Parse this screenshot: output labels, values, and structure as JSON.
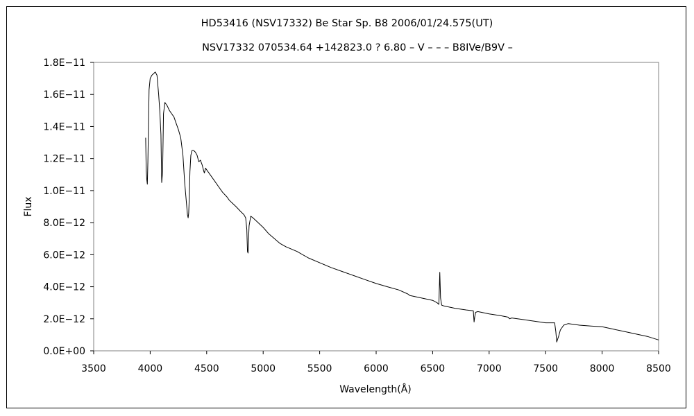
{
  "chart_data": {
    "type": "line",
    "title": "HD53416 (NSV17332)    Be Star    Sp. B8    2006/01/24.575(UT)",
    "subtitle": "NSV17332 070534.64 +142823.0 ? 6.80 – V – – – B8IVe/B9V –",
    "xlabel": "Wavelength(Å)",
    "ylabel": "Flux",
    "xlim": [
      3500,
      8500
    ],
    "ylim": [
      0,
      1.8e-11
    ],
    "grid": false,
    "x_ticks": [
      3500,
      4000,
      4500,
      5000,
      5500,
      6000,
      6500,
      7000,
      7500,
      8000,
      8500
    ],
    "x_tick_labels": [
      "3500",
      "4000",
      "4500",
      "5000",
      "5500",
      "6000",
      "6500",
      "7000",
      "7500",
      "8000",
      "8500"
    ],
    "y_ticks": [
      0,
      2e-12,
      4e-12,
      6e-12,
      8e-12,
      1e-11,
      1.2e-11,
      1.4e-11,
      1.6e-11,
      1.8e-11
    ],
    "y_tick_labels": [
      "0.0E+00",
      "2.0E−12",
      "4.0E−12",
      "6.0E−12",
      "8.0E−12",
      "1.0E−11",
      "1.2E−11",
      "1.4E−11",
      "1.6E−11",
      "1.8E−11"
    ],
    "series": [
      {
        "color": "#000000",
        "x": [
          3960,
          3965,
          3970,
          3975,
          3980,
          3990,
          4000,
          4015,
          4030,
          4045,
          4060,
          4075,
          4085,
          4095,
          4102,
          4110,
          4118,
          4130,
          4150,
          4170,
          4190,
          4210,
          4230,
          4250,
          4270,
          4290,
          4305,
          4320,
          4330,
          4336,
          4341,
          4346,
          4352,
          4360,
          4370,
          4385,
          4400,
          4415,
          4430,
          4445,
          4460,
          4475,
          4480,
          4490,
          4510,
          4530,
          4560,
          4600,
          4640,
          4680,
          4700,
          4730,
          4760,
          4800,
          4830,
          4845,
          4855,
          4861,
          4866,
          4875,
          4890,
          4910,
          4940,
          4970,
          5000,
          5050,
          5100,
          5150,
          5200,
          5300,
          5400,
          5500,
          5600,
          5700,
          5800,
          5900,
          6000,
          6100,
          6200,
          6280,
          6300,
          6400,
          6500,
          6540,
          6555,
          6563,
          6570,
          6580,
          6600,
          6700,
          6800,
          6860,
          6867,
          6872,
          6880,
          6900,
          7000,
          7100,
          7170,
          7180,
          7200,
          7300,
          7400,
          7500,
          7580,
          7590,
          7598,
          7605,
          7615,
          7630,
          7660,
          7700,
          7750,
          7800,
          7900,
          8000,
          8100,
          8200,
          8300,
          8400,
          8500
        ],
        "y": [
          1.33e-11,
          1.12e-11,
          1.07e-11,
          1.04e-11,
          1.18e-11,
          1.63e-11,
          1.7e-11,
          1.72e-11,
          1.73e-11,
          1.74e-11,
          1.72e-11,
          1.6e-11,
          1.5e-11,
          1.35e-11,
          1.05e-11,
          1.12e-11,
          1.48e-11,
          1.55e-11,
          1.53e-11,
          1.5e-11,
          1.48e-11,
          1.46e-11,
          1.42e-11,
          1.38e-11,
          1.33e-11,
          1.22e-11,
          1.05e-11,
          9.3e-12,
          8.5e-12,
          8.3e-12,
          8.6e-12,
          9.5e-12,
          1.12e-11,
          1.22e-11,
          1.25e-11,
          1.25e-11,
          1.24e-11,
          1.22e-11,
          1.18e-11,
          1.19e-11,
          1.16e-11,
          1.12e-11,
          1.11e-11,
          1.14e-11,
          1.12e-11,
          1.1e-11,
          1.07e-11,
          1.03e-11,
          9.9e-12,
          9.6e-12,
          9.4e-12,
          9.2e-12,
          9e-12,
          8.7e-12,
          8.5e-12,
          8.3e-12,
          7.6e-12,
          6.2e-12,
          6.1e-12,
          7.8e-12,
          8.4e-12,
          8.3e-12,
          8.1e-12,
          7.9e-12,
          7.7e-12,
          7.3e-12,
          7e-12,
          6.7e-12,
          6.5e-12,
          6.2e-12,
          5.8e-12,
          5.5e-12,
          5.2e-12,
          4.95e-12,
          4.7e-12,
          4.45e-12,
          4.2e-12,
          4e-12,
          3.8e-12,
          3.55e-12,
          3.45e-12,
          3.3e-12,
          3.15e-12,
          3e-12,
          2.9e-12,
          4.9e-12,
          3.3e-12,
          2.85e-12,
          2.8e-12,
          2.65e-12,
          2.55e-12,
          2.5e-12,
          1.8e-12,
          2.1e-12,
          2.4e-12,
          2.45e-12,
          2.3e-12,
          2.2e-12,
          2.1e-12,
          2e-12,
          2.05e-12,
          1.95e-12,
          1.85e-12,
          1.75e-12,
          1.75e-12,
          1.2e-12,
          5.5e-13,
          7e-13,
          9e-13,
          1.3e-12,
          1.6e-12,
          1.7e-12,
          1.65e-12,
          1.6e-12,
          1.55e-12,
          1.5e-12,
          1.35e-12,
          1.2e-12,
          1.05e-12,
          9e-13,
          6.8e-13
        ]
      }
    ]
  }
}
